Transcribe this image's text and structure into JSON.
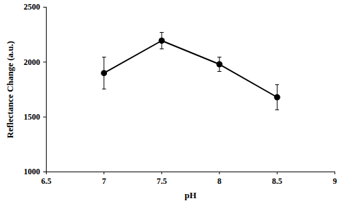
{
  "chart_data": {
    "type": "line",
    "x_label": "pH",
    "y_label": "Reflectance Change (a.u.)",
    "x": [
      7,
      7.5,
      8,
      8.5
    ],
    "values": [
      1900,
      2195,
      1980,
      1680
    ],
    "errors": [
      145,
      75,
      65,
      115
    ],
    "color": "#000000",
    "marker": "circle",
    "xlim": [
      6.5,
      9
    ],
    "xticks": [
      6.5,
      7,
      7.5,
      8,
      8.5,
      9
    ],
    "ylim": [
      1000,
      2500
    ],
    "yticks": [
      1000,
      1500,
      2000,
      2500
    ],
    "grid": false
  }
}
